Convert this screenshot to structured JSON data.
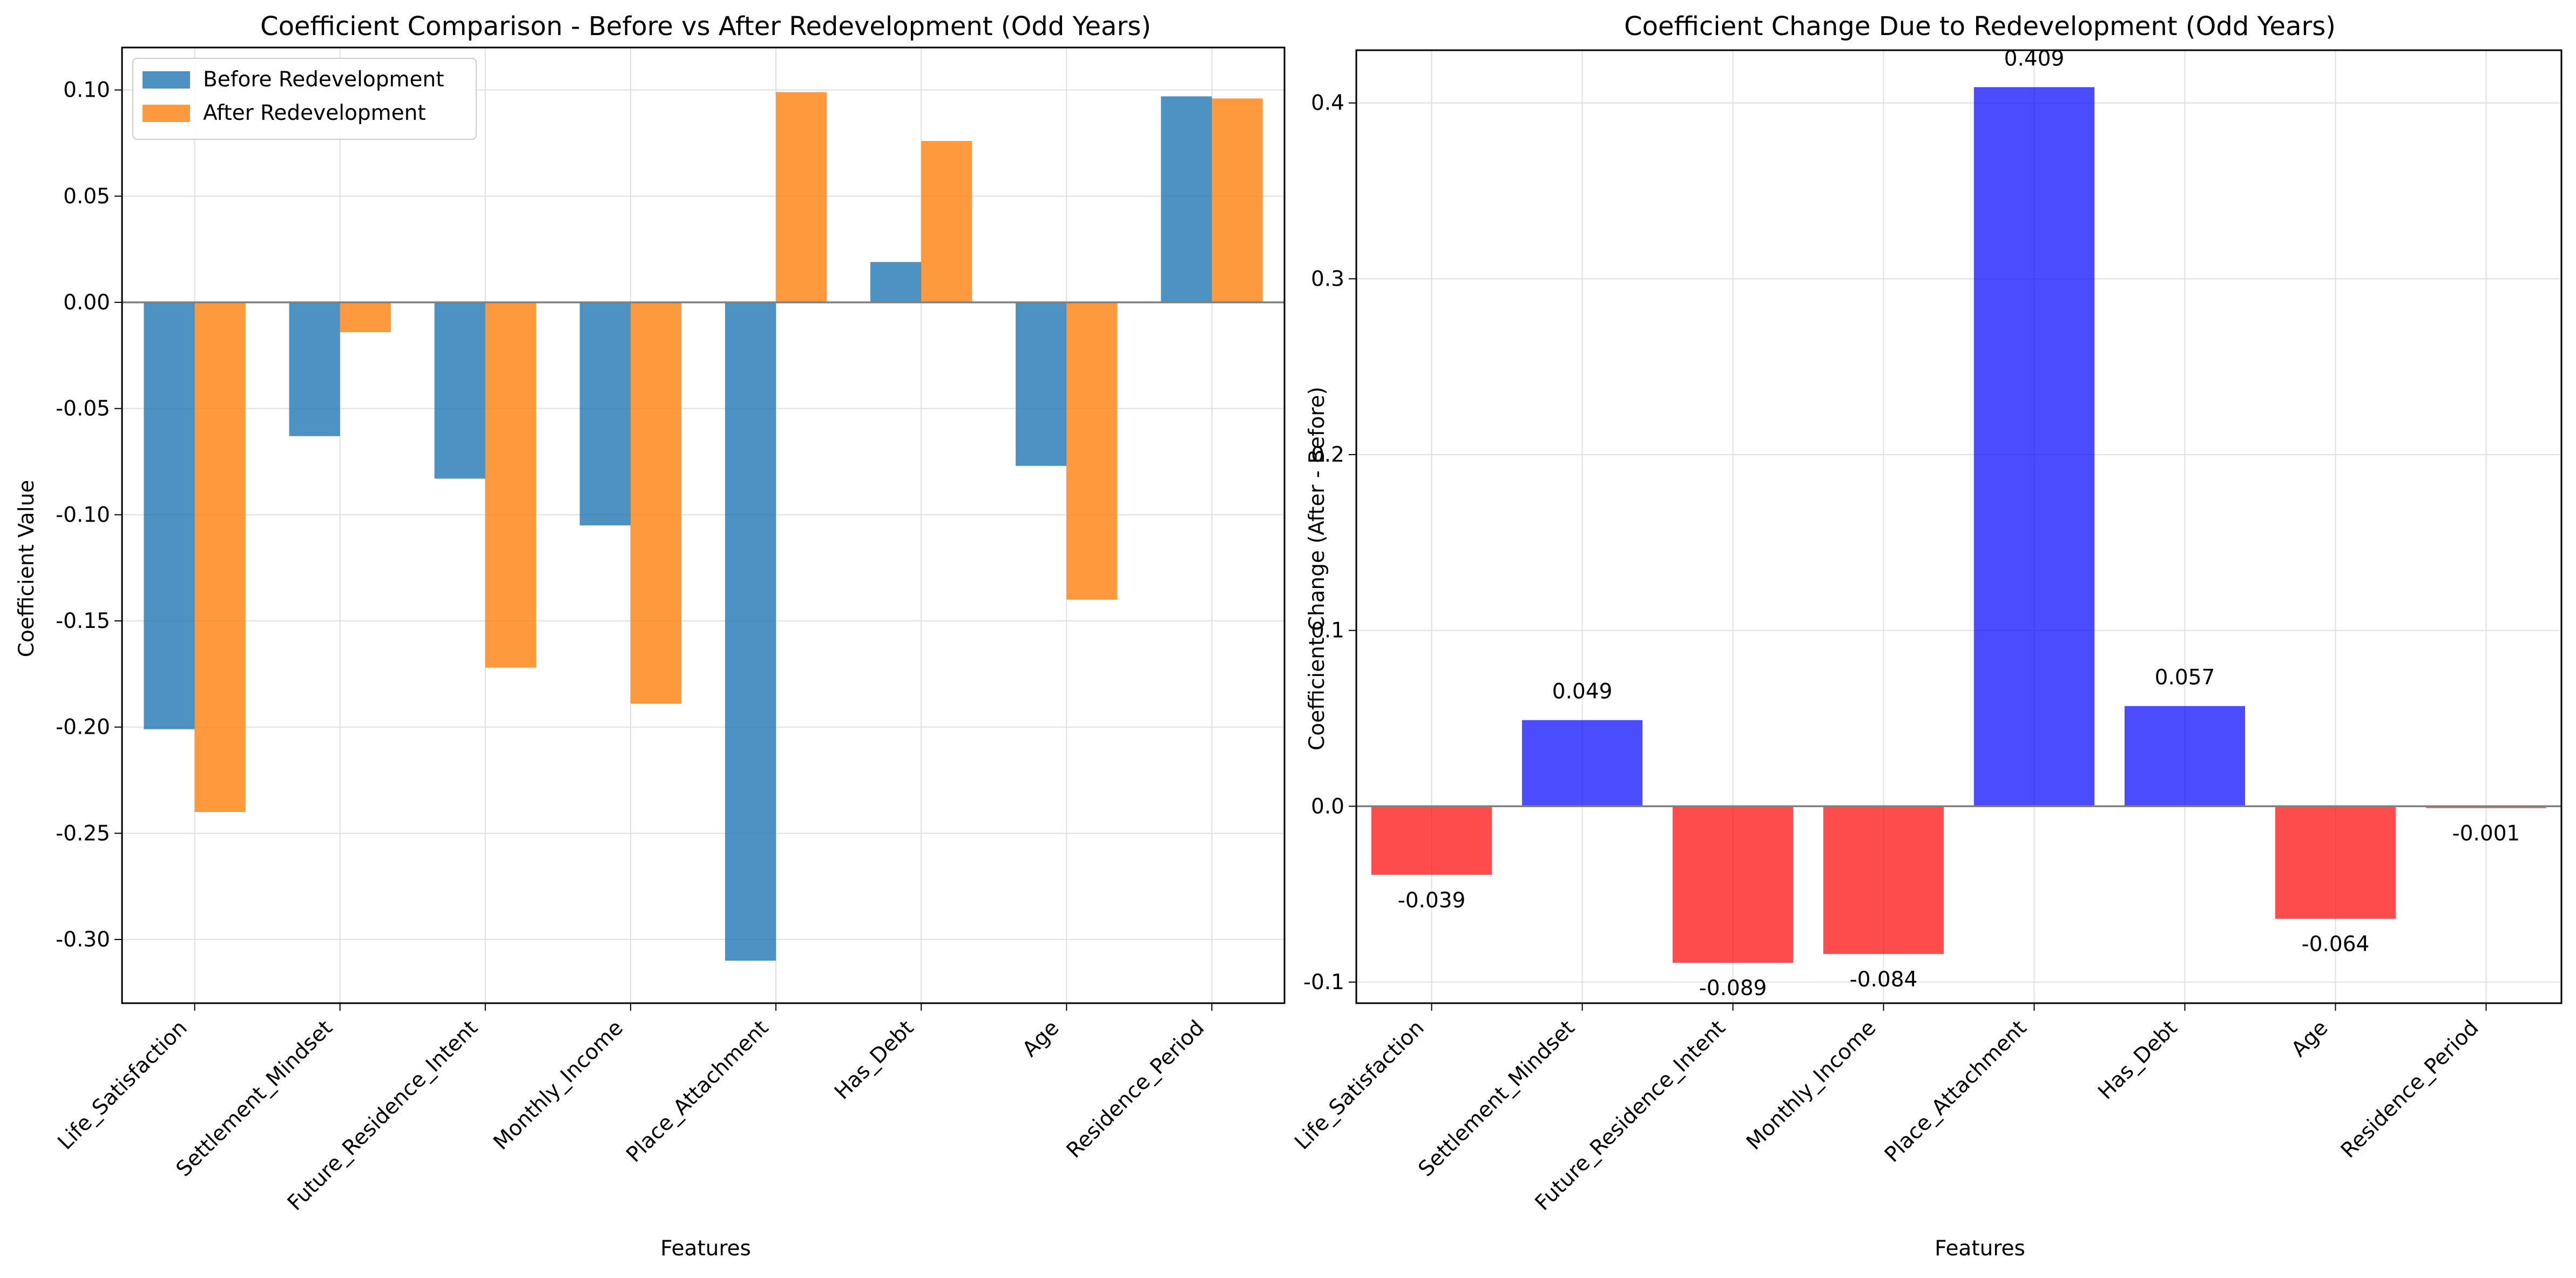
{
  "chart_data": [
    {
      "type": "bar",
      "title": "Coefficient Comparison - Before vs After Redevelopment (Odd Years)",
      "xlabel": "Features",
      "ylabel": "Coefficient Value",
      "categories": [
        "Life_Satisfaction",
        "Settlement_Mindset",
        "Future_Residence_Intent",
        "Monthly_Income",
        "Place_Attachment",
        "Has_Debt",
        "Age",
        "Residence_Period"
      ],
      "series": [
        {
          "name": "Before Redevelopment",
          "color": "#1f77b4",
          "values": [
            -0.201,
            -0.063,
            -0.083,
            -0.105,
            -0.31,
            0.019,
            -0.077,
            0.097
          ]
        },
        {
          "name": "After Redevelopment",
          "color": "#ff7f0e",
          "values": [
            -0.24,
            -0.014,
            -0.172,
            -0.189,
            0.099,
            0.076,
            -0.14,
            0.096
          ]
        }
      ],
      "ylim": [
        -0.33,
        0.12
      ],
      "yticks": [
        -0.3,
        -0.25,
        -0.2,
        -0.15,
        -0.1,
        -0.05,
        0.0,
        0.05,
        0.1
      ],
      "ytick_labels": [
        "-0.30",
        "-0.25",
        "-0.20",
        "-0.15",
        "-0.10",
        "-0.05",
        "0.00",
        "0.05",
        "0.10"
      ],
      "grid": true,
      "legend_position": "upper left"
    },
    {
      "type": "bar",
      "title": "Coefficient Change Due to Redevelopment (Odd Years)",
      "xlabel": "Features",
      "ylabel": "Coefficient Change (After - Before)",
      "categories": [
        "Life_Satisfaction",
        "Settlement_Mindset",
        "Future_Residence_Intent",
        "Monthly_Income",
        "Place_Attachment",
        "Has_Debt",
        "Age",
        "Residence_Period"
      ],
      "values": [
        -0.039,
        0.049,
        -0.089,
        -0.084,
        0.409,
        0.057,
        -0.064,
        -0.001
      ],
      "data_labels": [
        "-0.039",
        "0.049",
        "-0.089",
        "-0.084",
        "0.409",
        "0.057",
        "-0.064",
        "-0.001"
      ],
      "positive_color": "#0000ff",
      "negative_color": "#ff0000",
      "ylim": [
        -0.112,
        0.43
      ],
      "yticks": [
        -0.1,
        0.0,
        0.1,
        0.2,
        0.3,
        0.4
      ],
      "ytick_labels": [
        "-0.1",
        "0.0",
        "0.1",
        "0.2",
        "0.3",
        "0.4"
      ],
      "grid": true
    }
  ]
}
